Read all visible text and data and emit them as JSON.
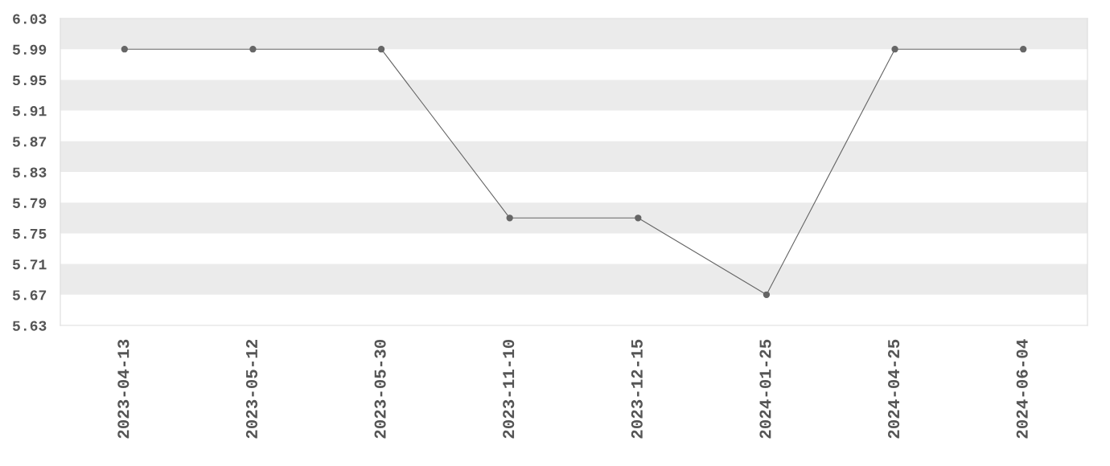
{
  "chart_data": {
    "type": "line",
    "categories": [
      "2023-04-13",
      "2023-05-12",
      "2023-05-30",
      "2023-11-10",
      "2023-12-15",
      "2024-01-25",
      "2024-04-25",
      "2024-06-04"
    ],
    "series": [
      {
        "color": "#666666",
        "values": [
          5.99,
          5.99,
          5.99,
          5.77,
          5.77,
          5.67,
          5.99,
          5.99
        ]
      }
    ],
    "ylim": [
      5.63,
      6.03
    ],
    "yticks": [
      {
        "value": 5.63,
        "label": "5.63"
      },
      {
        "value": 5.67,
        "label": "5.67"
      },
      {
        "value": 5.71,
        "label": "5.71"
      },
      {
        "value": 5.75,
        "label": "5.75"
      },
      {
        "value": 5.79,
        "label": "5.79"
      },
      {
        "value": 5.83,
        "label": "5.83"
      },
      {
        "value": 5.87,
        "label": "5.87"
      },
      {
        "value": 5.91,
        "label": "5.91"
      },
      {
        "value": 5.95,
        "label": "5.95"
      },
      {
        "value": 5.99,
        "label": "5.99"
      },
      {
        "value": 6.03,
        "label": "6.03"
      }
    ],
    "bands": [
      {
        "axis": "y",
        "from": 5.99,
        "to": 6.03,
        "color": "#ebebeb"
      },
      {
        "axis": "y",
        "from": 5.91,
        "to": 5.95,
        "color": "#ebebeb"
      },
      {
        "axis": "y",
        "from": 5.83,
        "to": 5.87,
        "color": "#ebebeb"
      },
      {
        "axis": "y",
        "from": 5.75,
        "to": 5.79,
        "color": "#ebebeb"
      },
      {
        "axis": "y",
        "from": 5.67,
        "to": 5.71,
        "color": "#ebebeb"
      }
    ],
    "marker": "circle",
    "line_style": "solid",
    "grid": false,
    "legend": false
  }
}
